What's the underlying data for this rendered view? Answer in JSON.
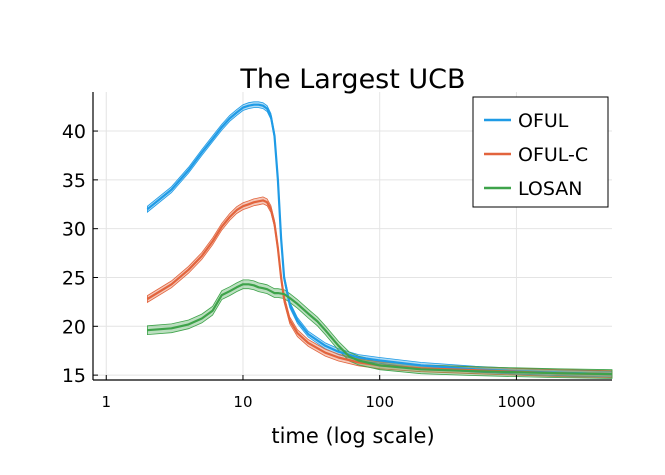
{
  "chart_data": {
    "type": "line",
    "title": "The Largest UCB",
    "xlabel": "time (log scale)",
    "ylabel": "",
    "x_scale": "log",
    "xlim": [
      0.8,
      5000
    ],
    "ylim": [
      14.5,
      44
    ],
    "x_ticks": [
      1,
      10,
      100,
      1000
    ],
    "x_tick_labels": [
      "1",
      "10",
      "100",
      "1000"
    ],
    "y_ticks": [
      15,
      20,
      25,
      30,
      35,
      40
    ],
    "y_tick_labels": [
      "15",
      "20",
      "25",
      "30",
      "35",
      "40"
    ],
    "grid": true,
    "legend_position": "top-right",
    "series": [
      {
        "name": "OFUL",
        "color": "#1f9be6",
        "band": 0.3,
        "points": [
          [
            2,
            32
          ],
          [
            3,
            34
          ],
          [
            4,
            36
          ],
          [
            5,
            37.8
          ],
          [
            6,
            39.2
          ],
          [
            7,
            40.4
          ],
          [
            8,
            41.3
          ],
          [
            9,
            41.9
          ],
          [
            10,
            42.4
          ],
          [
            11,
            42.6
          ],
          [
            12,
            42.7
          ],
          [
            13,
            42.7
          ],
          [
            14,
            42.6
          ],
          [
            15,
            42.3
          ],
          [
            16,
            41.5
          ],
          [
            17,
            39.5
          ],
          [
            18,
            35
          ],
          [
            19,
            29
          ],
          [
            20,
            25
          ],
          [
            22,
            22.2
          ],
          [
            25,
            20.6
          ],
          [
            30,
            19.2
          ],
          [
            40,
            18.0
          ],
          [
            50,
            17.4
          ],
          [
            70,
            16.8
          ],
          [
            100,
            16.5
          ],
          [
            200,
            16.0
          ],
          [
            500,
            15.6
          ],
          [
            1000,
            15.4
          ],
          [
            2000,
            15.25
          ],
          [
            5000,
            15.1
          ]
        ]
      },
      {
        "name": "OFUL-C",
        "color": "#e2643d",
        "band": 0.35,
        "points": [
          [
            2,
            22.8
          ],
          [
            3,
            24.3
          ],
          [
            4,
            25.8
          ],
          [
            5,
            27.2
          ],
          [
            6,
            28.7
          ],
          [
            7,
            30.2
          ],
          [
            8,
            31.2
          ],
          [
            9,
            31.9
          ],
          [
            10,
            32.3
          ],
          [
            11,
            32.5
          ],
          [
            12,
            32.7
          ],
          [
            13,
            32.8
          ],
          [
            14,
            32.9
          ],
          [
            15,
            32.7
          ],
          [
            16,
            32.0
          ],
          [
            17,
            30.5
          ],
          [
            18,
            28.0
          ],
          [
            19,
            25.0
          ],
          [
            20,
            22.8
          ],
          [
            22,
            20.6
          ],
          [
            25,
            19.3
          ],
          [
            30,
            18.3
          ],
          [
            40,
            17.3
          ],
          [
            50,
            16.8
          ],
          [
            70,
            16.3
          ],
          [
            100,
            16.0
          ],
          [
            200,
            15.7
          ],
          [
            500,
            15.5
          ],
          [
            1000,
            15.35
          ],
          [
            2000,
            15.2
          ],
          [
            5000,
            15.1
          ]
        ]
      },
      {
        "name": "LOSAN",
        "color": "#3ea34a",
        "band": 0.45,
        "points": [
          [
            2,
            19.6
          ],
          [
            3,
            19.8
          ],
          [
            4,
            20.2
          ],
          [
            5,
            20.8
          ],
          [
            6,
            21.6
          ],
          [
            7,
            23.2
          ],
          [
            8,
            23.6
          ],
          [
            9,
            24.0
          ],
          [
            10,
            24.3
          ],
          [
            11,
            24.3
          ],
          [
            12,
            24.2
          ],
          [
            13,
            24.0
          ],
          [
            14,
            23.9
          ],
          [
            15,
            23.8
          ],
          [
            16,
            23.6
          ],
          [
            17,
            23.4
          ],
          [
            18,
            23.4
          ],
          [
            20,
            23.3
          ],
          [
            22,
            22.9
          ],
          [
            25,
            22.3
          ],
          [
            30,
            21.3
          ],
          [
            35,
            20.5
          ],
          [
            40,
            19.6
          ],
          [
            50,
            18.0
          ],
          [
            60,
            16.9
          ],
          [
            70,
            16.5
          ],
          [
            100,
            16.0
          ],
          [
            200,
            15.6
          ],
          [
            500,
            15.4
          ],
          [
            1000,
            15.3
          ],
          [
            2000,
            15.2
          ],
          [
            5000,
            15.1
          ]
        ]
      }
    ]
  }
}
